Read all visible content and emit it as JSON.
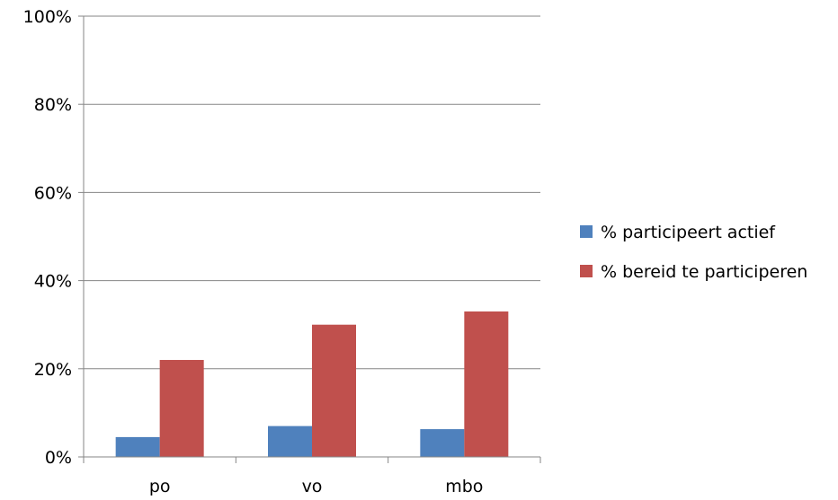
{
  "chart_data": {
    "type": "bar",
    "categories": [
      "po",
      "vo",
      "mbo"
    ],
    "series": [
      {
        "name": "% participeert actief",
        "values": [
          4.5,
          7.0,
          6.3
        ],
        "color": "#4f81bd"
      },
      {
        "name": "% bereid te participeren",
        "values": [
          22.0,
          30.0,
          33.0
        ],
        "color": "#c0504d"
      }
    ],
    "ylim": [
      0,
      100
    ],
    "yticks": [
      0,
      20,
      40,
      60,
      80,
      100
    ],
    "ytick_labels": [
      "0%",
      "20%",
      "40%",
      "60%",
      "80%",
      "100%"
    ],
    "grid": true,
    "legend_position": "right",
    "title": "",
    "xlabel": "",
    "ylabel": ""
  }
}
